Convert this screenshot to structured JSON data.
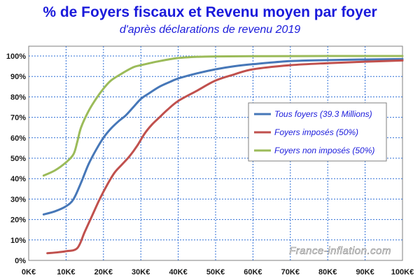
{
  "chart_data": {
    "type": "line",
    "title": "% de Foyers fiscaux et Revenu moyen par foyer",
    "subtitle": "d'après déclarations de revenu 2019",
    "xlabel": "",
    "ylabel": "",
    "xlim": [
      0,
      100
    ],
    "ylim": [
      0,
      100
    ],
    "x_tick_labels": [
      "0K€",
      "10K€",
      "20K€",
      "30K€",
      "40K€",
      "50K€",
      "60K€",
      "70K€",
      "80K€",
      "90K€",
      "100K€"
    ],
    "y_tick_labels": [
      "0%",
      "10%",
      "20%",
      "30%",
      "40%",
      "50%",
      "60%",
      "70%",
      "80%",
      "90%",
      "100%"
    ],
    "grid": true,
    "legend_position": "right",
    "watermark": "France-inflation.com",
    "series": [
      {
        "name": "Tous foyers (39.3 Millions)",
        "color": "#4677b8",
        "points": [
          [
            4,
            22.5
          ],
          [
            7,
            24
          ],
          [
            10,
            26.5
          ],
          [
            12,
            30
          ],
          [
            14,
            38
          ],
          [
            16,
            47
          ],
          [
            18,
            54
          ],
          [
            20,
            60
          ],
          [
            22,
            64.5
          ],
          [
            24,
            68
          ],
          [
            26,
            71
          ],
          [
            28,
            75
          ],
          [
            30,
            79
          ],
          [
            32,
            81.5
          ],
          [
            35,
            85
          ],
          [
            38,
            87.5
          ],
          [
            40,
            89
          ],
          [
            45,
            91.5
          ],
          [
            50,
            93.5
          ],
          [
            55,
            95
          ],
          [
            60,
            96
          ],
          [
            70,
            97.5
          ],
          [
            80,
            98
          ],
          [
            90,
            98.3
          ],
          [
            100,
            98.5
          ]
        ]
      },
      {
        "name": "Foyers imposés (50%)",
        "color": "#c0504d",
        "points": [
          [
            5,
            3.5
          ],
          [
            8,
            4
          ],
          [
            10,
            4.5
          ],
          [
            13,
            6
          ],
          [
            15,
            14
          ],
          [
            17,
            22
          ],
          [
            19,
            30
          ],
          [
            21,
            37
          ],
          [
            23,
            43
          ],
          [
            25,
            47
          ],
          [
            27,
            51
          ],
          [
            29,
            56
          ],
          [
            31,
            62
          ],
          [
            33,
            66.5
          ],
          [
            35,
            70
          ],
          [
            37,
            73.5
          ],
          [
            40,
            78
          ],
          [
            45,
            83
          ],
          [
            50,
            88
          ],
          [
            55,
            91
          ],
          [
            60,
            93.5
          ],
          [
            70,
            95.5
          ],
          [
            80,
            96.5
          ],
          [
            90,
            97.2
          ],
          [
            100,
            97.8
          ]
        ]
      },
      {
        "name": "Foyers non imposés (50%)",
        "color": "#9bbb59",
        "points": [
          [
            4,
            41.5
          ],
          [
            7,
            44
          ],
          [
            10,
            48
          ],
          [
            12,
            52
          ],
          [
            13,
            58
          ],
          [
            14,
            65
          ],
          [
            16,
            73
          ],
          [
            18,
            79
          ],
          [
            20,
            84
          ],
          [
            22,
            88
          ],
          [
            25,
            91.5
          ],
          [
            28,
            94.5
          ],
          [
            30,
            95.5
          ],
          [
            35,
            97.5
          ],
          [
            40,
            99
          ],
          [
            45,
            99.6
          ],
          [
            50,
            99.8
          ],
          [
            60,
            99.9
          ],
          [
            80,
            100
          ],
          [
            100,
            100
          ]
        ]
      }
    ]
  }
}
